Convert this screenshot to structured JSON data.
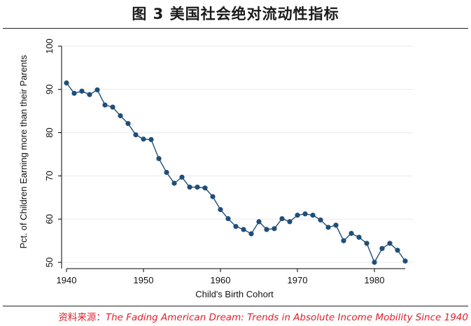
{
  "figure": {
    "title": "图 3  美国社会绝对流动性指标",
    "source_prefix": "资料来源：",
    "source_text": "The Fading American Dream: Trends in Absolute Income Mobility Since 1940"
  },
  "colors": {
    "series": "#1f4e79",
    "axis": "#000000",
    "grid": "#eaeaea",
    "source": "#e0202a"
  },
  "chart_data": {
    "type": "line",
    "xlabel": "Child's Birth Cohort",
    "ylabel": "Pct. of Children Earning more than their Parents",
    "xlim": [
      1940,
      1984
    ],
    "ylim": [
      50,
      100
    ],
    "xticks": [
      1940,
      1950,
      1960,
      1970,
      1980
    ],
    "yticks": [
      50,
      60,
      70,
      80,
      90,
      100
    ],
    "grid": true,
    "legend": "none",
    "series": [
      {
        "x": [
          1940,
          1941,
          1942,
          1943,
          1944,
          1945,
          1946,
          1947,
          1948,
          1949,
          1950,
          1951,
          1952,
          1953,
          1954,
          1955,
          1956,
          1957,
          1958,
          1959,
          1960,
          1961,
          1962,
          1963,
          1964,
          1965,
          1966,
          1967,
          1968,
          1969,
          1970,
          1971,
          1972,
          1973,
          1974,
          1975,
          1976,
          1977,
          1978,
          1979,
          1980,
          1981,
          1982,
          1983,
          1984
        ],
        "values": [
          91.5,
          89.1,
          89.6,
          88.8,
          89.9,
          86.4,
          85.9,
          83.9,
          82.1,
          79.5,
          78.5,
          78.4,
          74.0,
          70.8,
          68.3,
          69.7,
          67.4,
          67.4,
          67.2,
          65.2,
          62.2,
          60.1,
          58.3,
          57.6,
          56.6,
          59.4,
          57.6,
          57.8,
          60.1,
          59.4,
          60.9,
          61.2,
          60.9,
          59.8,
          58.1,
          58.6,
          55.0,
          56.7,
          55.8,
          54.4,
          50.0,
          53.2,
          54.4,
          52.8,
          50.3
        ]
      }
    ]
  }
}
